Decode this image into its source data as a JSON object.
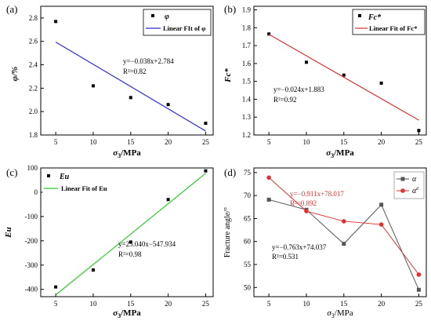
{
  "chart_data": [
    {
      "panel_label": "(a)",
      "type": "scatter",
      "xlabel": "σ3/MPa",
      "ylabel": "φ/%",
      "xlim": [
        3,
        26
      ],
      "ylim": [
        1.8,
        2.9
      ],
      "xticks": [
        5,
        10,
        15,
        20,
        25
      ],
      "yticks": [
        1.8,
        2.0,
        2.2,
        2.4,
        2.6,
        2.8
      ],
      "legend_position": "top-right",
      "series": [
        {
          "name": "φ",
          "kind": "points",
          "color": "#000000",
          "x": [
            5,
            10,
            15,
            20,
            25
          ],
          "y": [
            2.77,
            2.22,
            2.12,
            2.06,
            1.9
          ]
        },
        {
          "name": "Linear FIt of φ",
          "kind": "fit",
          "color": "#2b2bd4",
          "x": [
            5,
            25
          ],
          "y": [
            2.594,
            1.834
          ]
        }
      ],
      "annotations": [
        "y=−0.038x+2.784",
        "R²=0.82"
      ]
    },
    {
      "panel_label": "(b)",
      "type": "scatter",
      "xlabel": "σ3/MPa",
      "ylabel": "Fc*",
      "xlim": [
        3,
        26
      ],
      "ylim": [
        1.2,
        1.92
      ],
      "xticks": [
        5,
        10,
        15,
        20,
        25
      ],
      "yticks": [
        1.2,
        1.3,
        1.4,
        1.5,
        1.6,
        1.7,
        1.8,
        1.9
      ],
      "legend_position": "top-right",
      "series": [
        {
          "name": "Fc*",
          "kind": "points",
          "color": "#000000",
          "x": [
            5,
            10,
            15,
            20,
            25
          ],
          "y": [
            1.765,
            1.607,
            1.535,
            1.49,
            1.225
          ]
        },
        {
          "name": "Linear Fit of Fc*",
          "kind": "fit",
          "color": "#e03030",
          "x": [
            5,
            25
          ],
          "y": [
            1.763,
            1.283
          ]
        }
      ],
      "annotations": [
        "y=−0.024x+1.883",
        "R²=0.92"
      ]
    },
    {
      "panel_label": "(c)",
      "type": "scatter",
      "xlabel": "σ3/MPa",
      "ylabel": "Eu",
      "xlim": [
        3,
        26
      ],
      "ylim": [
        -430,
        100
      ],
      "xticks": [
        5,
        10,
        15,
        20,
        25
      ],
      "yticks": [
        -400,
        -300,
        -200,
        -100,
        0,
        100
      ],
      "legend_position": "top-left",
      "series": [
        {
          "name": "Eu",
          "kind": "points",
          "color": "#000000",
          "x": [
            5,
            10,
            15,
            20,
            25
          ],
          "y": [
            -390,
            -320,
            -205,
            -30,
            88
          ]
        },
        {
          "name": "Linear Fit of Eu",
          "kind": "fit",
          "color": "#2ecc2e",
          "x": [
            5,
            25
          ],
          "y": [
            -422.7,
            78.1
          ]
        }
      ],
      "annotations": [
        "y=25.040x−547.934",
        "R²=0.98"
      ]
    },
    {
      "panel_label": "(d)",
      "type": "line",
      "xlabel": "σ3/MPa",
      "ylabel": "Fracture angle/°",
      "xlim": [
        3,
        26
      ],
      "ylim": [
        48,
        76
      ],
      "xticks": [
        5,
        10,
        15,
        20,
        25
      ],
      "yticks": [
        50,
        55,
        60,
        65,
        70,
        75
      ],
      "legend_position": "top-right",
      "series": [
        {
          "name": "α",
          "marker": "square",
          "color": "#555555",
          "x": [
            5,
            10,
            15,
            20,
            25
          ],
          "y": [
            69.1,
            66.9,
            59.5,
            68.0,
            49.5
          ]
        },
        {
          "name": "αe",
          "marker": "circle",
          "color": "#e03030",
          "x": [
            5,
            10,
            15,
            20,
            25
          ],
          "y": [
            73.9,
            66.6,
            64.4,
            63.7,
            52.8
          ]
        }
      ],
      "annotations": [
        "y=−0.911x+78.017",
        "R²=0.892",
        "y=−0.763x+74.037",
        "R²=0.531"
      ]
    }
  ]
}
